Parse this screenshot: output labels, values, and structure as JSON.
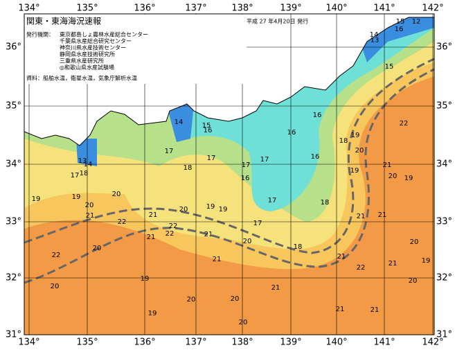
{
  "header": {
    "title": "関東・東海海況速報",
    "issue_date": "平成 27 年4月20日 発行",
    "issuers_label": "発行機関：",
    "issuers": [
      "東京都島しょ農林水産総合センター",
      "千葉県水産総合研究センター",
      "神奈川県水産技術センター",
      "静岡県水産技術研究所",
      "三重県水産研究所",
      "◎和歌山県水産試験場"
    ],
    "sources": "資料：船舶水温，衛星水温，気象庁解析水温"
  },
  "map": {
    "longitude_labels": [
      "134°",
      "135°",
      "136°",
      "137°",
      "138°",
      "139°",
      "140°",
      "141°",
      "142°"
    ],
    "latitude_labels": [
      "36°",
      "35°",
      "34°",
      "33°",
      "32°",
      "31°"
    ],
    "contour_labels": [
      15,
      12,
      16,
      14,
      13,
      15,
      14,
      15,
      16,
      16,
      16,
      18,
      19,
      20,
      22,
      17,
      17,
      17,
      16,
      18,
      17,
      21,
      20,
      19,
      19,
      16,
      17,
      18,
      13,
      14,
      17,
      18,
      20,
      19,
      19,
      20,
      21,
      20,
      19,
      19,
      21,
      21,
      22,
      21,
      22,
      21,
      22,
      21,
      17,
      20,
      18,
      20,
      22,
      21,
      21,
      20,
      21,
      22,
      19,
      19,
      20,
      20,
      20,
      21,
      20,
      19,
      20,
      21,
      21
    ]
  }
}
